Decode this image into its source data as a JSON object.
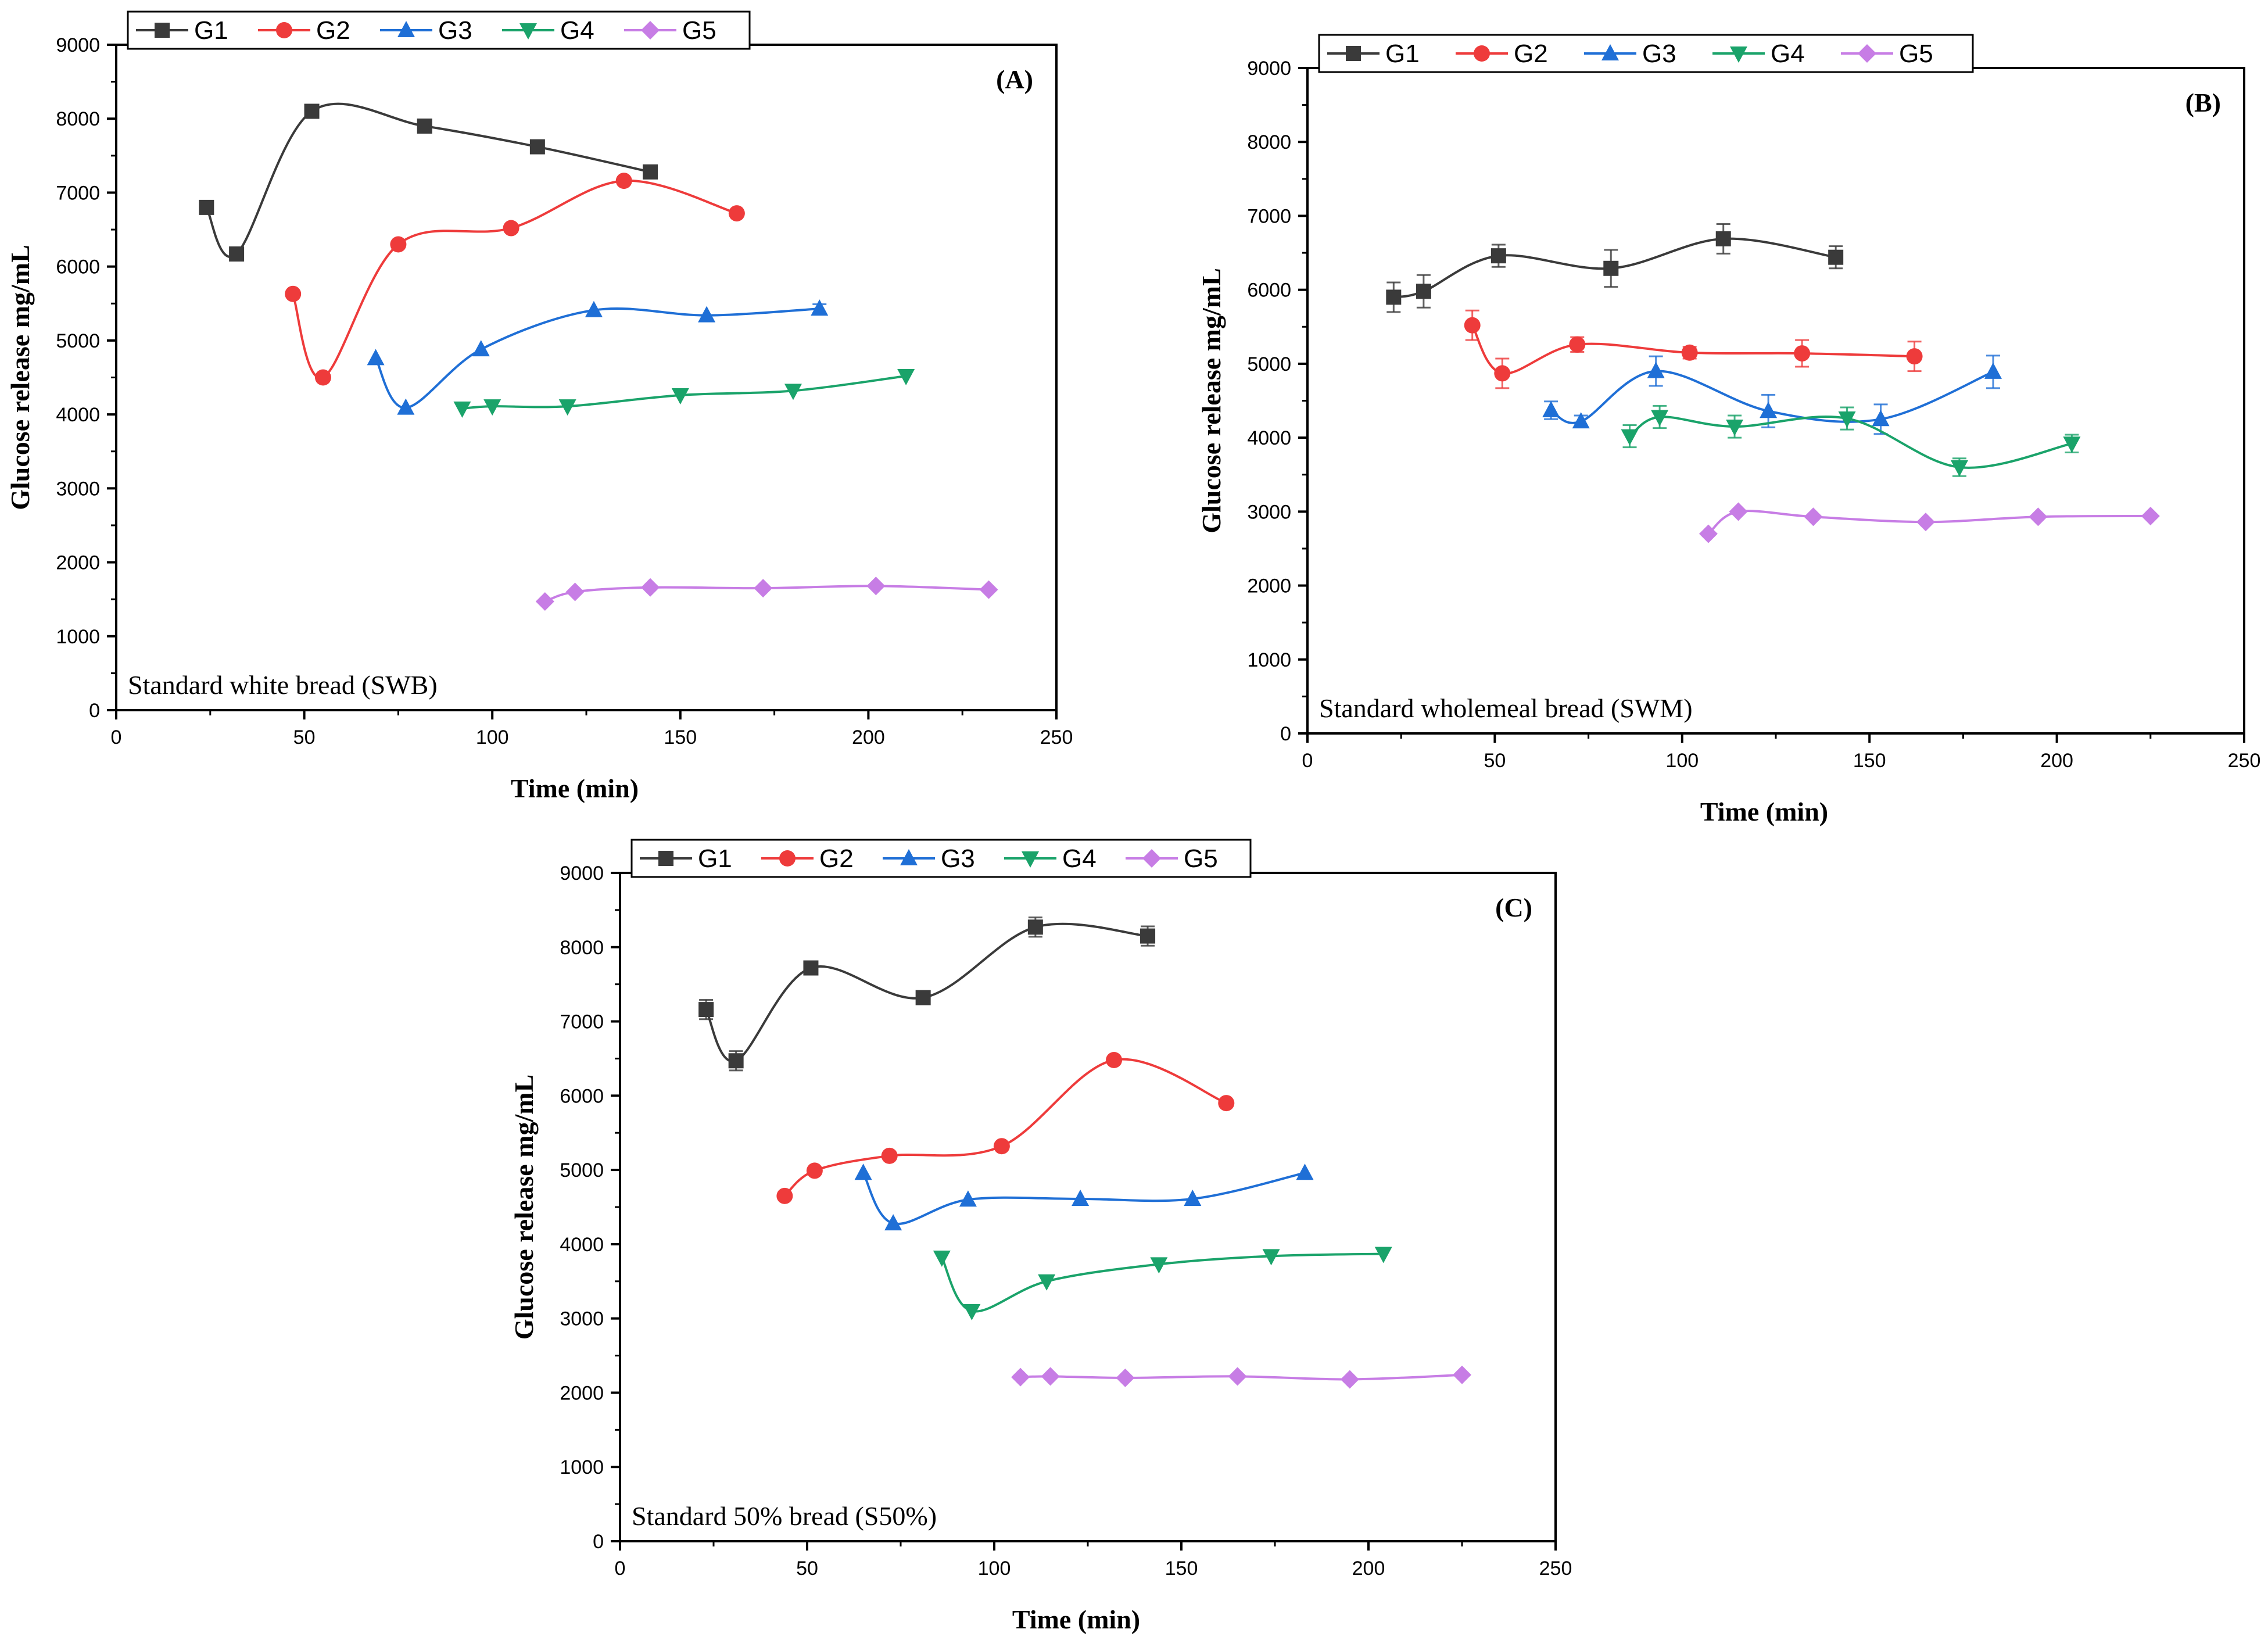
{
  "figure": {
    "legend_labels": [
      "G1",
      "G2",
      "G3",
      "G4",
      "G5"
    ]
  },
  "chart_data": [
    {
      "type": "line",
      "panel_label": "(A)",
      "annotation": "Standard white bread (SWB)",
      "xlabel": "Time (min)",
      "ylabel": "Glucose release mg/mL",
      "xlim": [
        0,
        250
      ],
      "ylim": [
        0,
        9000
      ],
      "xticks": [
        0,
        50,
        100,
        150,
        200,
        250
      ],
      "yticks": [
        0,
        1000,
        2000,
        3000,
        4000,
        5000,
        6000,
        7000,
        8000,
        9000
      ],
      "grid": false,
      "legend_position": "top-left, above plot",
      "series": [
        {
          "name": "G1",
          "color": "#3a3a3a",
          "marker": "square",
          "x": [
            24,
            32,
            52,
            82,
            112,
            142
          ],
          "y": [
            6800,
            6170,
            8100,
            7900,
            7620,
            7280
          ],
          "err": [
            0,
            0,
            0,
            0,
            0,
            0
          ]
        },
        {
          "name": "G2",
          "color": "#ee3b3b",
          "marker": "circle",
          "x": [
            47,
            55,
            75,
            105,
            135,
            165
          ],
          "y": [
            5630,
            4500,
            6300,
            6520,
            7160,
            6720
          ],
          "err": [
            0,
            0,
            0,
            0,
            0,
            0
          ]
        },
        {
          "name": "G3",
          "color": "#1f6fd6",
          "marker": "triangle-up",
          "x": [
            69,
            77,
            97,
            127,
            157,
            187
          ],
          "y": [
            4760,
            4090,
            4880,
            5410,
            5340,
            5430
          ],
          "err": [
            0,
            0,
            0,
            0,
            0,
            60
          ]
        },
        {
          "name": "G4",
          "color": "#1aa36a",
          "marker": "triangle-down",
          "x": [
            92,
            100,
            120,
            150,
            180,
            210
          ],
          "y": [
            4080,
            4110,
            4110,
            4260,
            4320,
            4520
          ],
          "err": [
            0,
            0,
            0,
            0,
            0,
            0
          ]
        },
        {
          "name": "G5",
          "color": "#c77de5",
          "marker": "diamond",
          "x": [
            114,
            122,
            142,
            172,
            202,
            232
          ],
          "y": [
            1470,
            1600,
            1660,
            1650,
            1680,
            1630
          ],
          "err": [
            0,
            0,
            0,
            0,
            0,
            0
          ]
        }
      ]
    },
    {
      "type": "line",
      "panel_label": "(B)",
      "annotation": "Standard wholemeal bread (SWM)",
      "xlabel": "Time (min)",
      "ylabel": "Glucose release mg/mL",
      "xlim": [
        0,
        250
      ],
      "ylim": [
        0,
        9000
      ],
      "xticks": [
        0,
        50,
        100,
        150,
        200,
        250
      ],
      "yticks": [
        0,
        1000,
        2000,
        3000,
        4000,
        5000,
        6000,
        7000,
        8000,
        9000
      ],
      "grid": false,
      "legend_position": "top-left, above plot",
      "series": [
        {
          "name": "G1",
          "color": "#3a3a3a",
          "marker": "square",
          "x": [
            23,
            31,
            51,
            81,
            111,
            141
          ],
          "y": [
            5900,
            5980,
            6460,
            6290,
            6690,
            6440
          ],
          "err": [
            200,
            220,
            150,
            250,
            200,
            150
          ]
        },
        {
          "name": "G2",
          "color": "#ee3b3b",
          "marker": "circle",
          "x": [
            44,
            52,
            72,
            102,
            132,
            162
          ],
          "y": [
            5520,
            4870,
            5260,
            5150,
            5140,
            5100
          ],
          "err": [
            200,
            200,
            100,
            80,
            180,
            200
          ]
        },
        {
          "name": "G3",
          "color": "#1f6fd6",
          "marker": "triangle-up",
          "x": [
            65,
            73,
            93,
            123,
            153,
            183
          ],
          "y": [
            4370,
            4220,
            4900,
            4360,
            4250,
            4890
          ],
          "err": [
            120,
            80,
            200,
            220,
            200,
            220
          ]
        },
        {
          "name": "G4",
          "color": "#1aa36a",
          "marker": "triangle-down",
          "x": [
            86,
            94,
            114,
            144,
            174,
            204
          ],
          "y": [
            4020,
            4280,
            4150,
            4260,
            3600,
            3920
          ],
          "err": [
            150,
            150,
            150,
            150,
            120,
            120
          ]
        },
        {
          "name": "G5",
          "color": "#c77de5",
          "marker": "diamond",
          "x": [
            107,
            115,
            135,
            165,
            195,
            225
          ],
          "y": [
            2700,
            3000,
            2930,
            2860,
            2930,
            2940
          ],
          "err": [
            0,
            0,
            0,
            0,
            0,
            0
          ]
        }
      ]
    },
    {
      "type": "line",
      "panel_label": "(C)",
      "annotation": "Standard 50% bread (S50%)",
      "xlabel": "Time (min)",
      "ylabel": "Glucose release mg/mL",
      "xlim": [
        0,
        250
      ],
      "ylim": [
        0,
        9000
      ],
      "xticks": [
        0,
        50,
        100,
        150,
        200,
        250
      ],
      "yticks": [
        0,
        1000,
        2000,
        3000,
        4000,
        5000,
        6000,
        7000,
        8000,
        9000
      ],
      "grid": false,
      "legend_position": "top-left, above plot",
      "series": [
        {
          "name": "G1",
          "color": "#3a3a3a",
          "marker": "square",
          "x": [
            23,
            31,
            51,
            81,
            111,
            141
          ],
          "y": [
            7160,
            6470,
            7720,
            7320,
            8270,
            8150
          ],
          "err": [
            130,
            130,
            80,
            80,
            130,
            130
          ]
        },
        {
          "name": "G2",
          "color": "#ee3b3b",
          "marker": "circle",
          "x": [
            44,
            52,
            72,
            102,
            132,
            162
          ],
          "y": [
            4650,
            4990,
            5190,
            5320,
            6480,
            5900
          ],
          "err": [
            0,
            0,
            0,
            0,
            0,
            0
          ]
        },
        {
          "name": "G3",
          "color": "#1f6fd6",
          "marker": "triangle-up",
          "x": [
            65,
            73,
            93,
            123,
            153,
            183
          ],
          "y": [
            4960,
            4280,
            4600,
            4610,
            4610,
            4960
          ],
          "err": [
            0,
            0,
            0,
            0,
            0,
            0
          ]
        },
        {
          "name": "G4",
          "color": "#1aa36a",
          "marker": "triangle-down",
          "x": [
            86,
            94,
            114,
            144,
            174,
            204
          ],
          "y": [
            3820,
            3100,
            3500,
            3730,
            3840,
            3870
          ],
          "err": [
            0,
            0,
            0,
            0,
            0,
            0
          ]
        },
        {
          "name": "G5",
          "color": "#c77de5",
          "marker": "diamond",
          "x": [
            107,
            115,
            135,
            165,
            195,
            225
          ],
          "y": [
            2210,
            2220,
            2200,
            2220,
            2180,
            2240
          ],
          "err": [
            0,
            0,
            0,
            0,
            0,
            0
          ]
        }
      ]
    }
  ]
}
